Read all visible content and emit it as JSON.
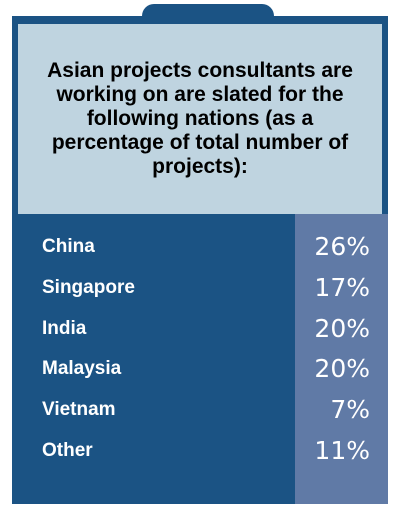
{
  "chart_data": {
    "type": "table",
    "title": "Asian projects consultants are working on are slated for the following nations (as a percentage of total number of projects):",
    "categories": [
      "China",
      "Singapore",
      "India",
      "Malaysia",
      "Vietnam",
      "Other"
    ],
    "values": [
      26,
      17,
      20,
      20,
      7,
      11
    ],
    "value_labels": [
      "26%",
      "17%",
      "20%",
      "20%",
      "7%",
      "11%"
    ],
    "unit": "%"
  },
  "colors": {
    "frame": "#1b5384",
    "header_background": "#bfd4e0",
    "value_column": "#607aa6",
    "text_light": "#ffffff",
    "text_dark": "#000000"
  }
}
